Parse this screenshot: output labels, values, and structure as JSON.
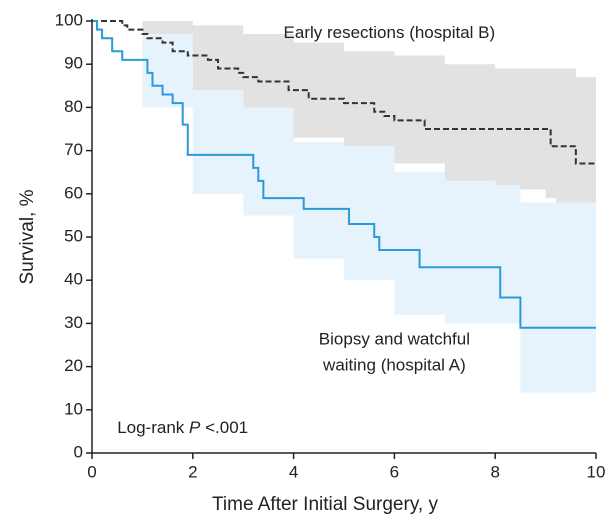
{
  "chart_data": {
    "type": "step",
    "xlabel": "Time After Initial Surgery, y",
    "ylabel": "Survival, %",
    "xlim": [
      0,
      10
    ],
    "ylim": [
      0,
      100
    ],
    "xticks": [
      0,
      2,
      4,
      6,
      8,
      10
    ],
    "yticks": [
      0,
      10,
      20,
      30,
      40,
      50,
      60,
      70,
      80,
      90,
      100
    ],
    "series": [
      {
        "color": "#333333",
        "dash": true,
        "x": [
          0,
          0.6,
          0.7,
          1.0,
          1.1,
          1.4,
          1.6,
          1.9,
          2.3,
          2.5,
          2.9,
          3.0,
          3.3,
          3.9,
          4.3,
          5.0,
          5.6,
          5.8,
          6.0,
          6.6,
          9.1,
          9.6,
          10
        ],
        "values": [
          100,
          99,
          98,
          97,
          96,
          95,
          93,
          92,
          91,
          89,
          88,
          87,
          86,
          84,
          82,
          81,
          79,
          78,
          77,
          75,
          71,
          67,
          67
        ],
        "band": {
          "color": "#e2e2e2",
          "x": [
            0,
            1,
            2,
            3,
            4,
            5,
            6,
            7,
            8,
            9,
            9.2,
            9.6,
            10
          ],
          "upper": [
            100,
            100,
            99,
            97,
            95,
            93,
            92,
            90,
            89,
            89,
            89,
            87,
            86
          ],
          "lower": [
            100,
            90,
            84,
            79,
            73,
            70,
            67,
            63,
            61,
            59,
            57,
            52,
            51
          ]
        }
      },
      {
        "color": "#2a9ad8",
        "dash": false,
        "x": [
          0,
          0.1,
          0.2,
          0.4,
          0.6,
          1.1,
          1.2,
          1.4,
          1.6,
          1.8,
          1.9,
          3.2,
          3.3,
          3.4,
          4.2,
          5.1,
          5.6,
          5.7,
          6.5,
          8.1,
          8.5,
          10
        ],
        "values": [
          100,
          98,
          96,
          93,
          91,
          88,
          85,
          83,
          81,
          76,
          69,
          66,
          63,
          59,
          56.5,
          53,
          50,
          47,
          43,
          36,
          29,
          29
        ],
        "band": {
          "color": "#e6f3fc",
          "x": [
            0,
            1,
            2,
            3,
            4,
            5,
            6,
            7,
            8,
            8.5,
            10
          ],
          "upper": [
            100,
            97,
            84,
            80,
            72,
            71,
            65,
            63,
            62,
            58,
            52
          ],
          "lower": [
            100,
            80,
            60,
            55,
            45,
            40,
            32,
            30,
            30,
            14,
            14
          ]
        }
      }
    ],
    "annotations": [
      {
        "lines": [
          "Early resections (hospital B)"
        ],
        "x": 5.9,
        "y": 97
      },
      {
        "lines": [
          "Biopsy and watchful",
          "waiting (hospital A)"
        ],
        "x": 6.0,
        "y": 26
      },
      {
        "parts": [
          {
            "text": "Log-rank "
          },
          {
            "text": "P",
            "italic": true
          },
          {
            "text": " <.001"
          }
        ],
        "x": 0.5,
        "y": 5.5
      }
    ]
  }
}
